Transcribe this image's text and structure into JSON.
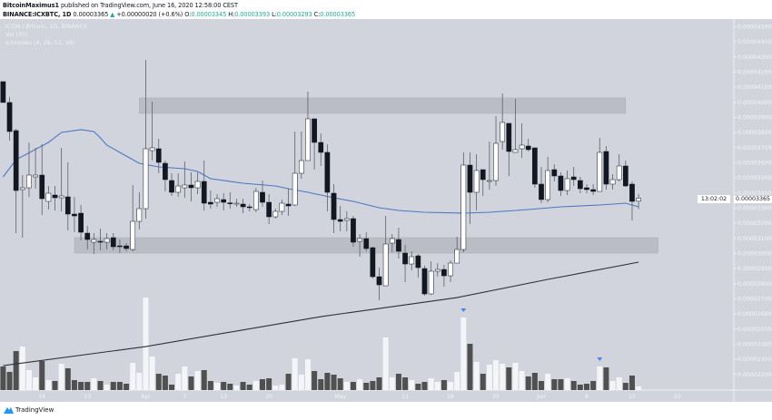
{
  "header": {
    "author": "BitcoinMaximus1",
    "published": "published on TradingView.com, June 16, 2020 12:58:00 CEST",
    "symbol": "BINANCE:ICXBTC, 1D",
    "last": "0.00003365",
    "change": "+0.00000020 (+0.6%)",
    "o_label": "O:",
    "o": "0.00003345",
    "h_label": "H:",
    "h": "0.00003393",
    "l_label": "L:",
    "l": "0.00003293",
    "c_label": "C:",
    "c": "0.00003365"
  },
  "legend": {
    "main": "ICON / Bitcoin, 1D, BINANCE",
    "vol": "Vol (20)",
    "ichimoku": "Ichimoku (9, 26, 52, 26)"
  },
  "price_tag": {
    "price": "0.00003365",
    "countdown": "13:02:02"
  },
  "footer": {
    "brand": "TradingView"
  },
  "colors": {
    "background": "#d1d4dc",
    "up_candle": "#ffffff",
    "down_candle": "#131722",
    "up_volume": "#f4f5f8",
    "down_volume": "#505050",
    "ma_blue": "#4a78c6",
    "ma_black": "#2f3036",
    "zone": "#b4b7c0",
    "marker": "#4a86e8",
    "accent_teal": "#26a69a"
  },
  "chart_data": {
    "type": "candlestick",
    "interval": "1D",
    "ylim": [
      2.1e-05,
      4.62e-05
    ],
    "y_ticks": [
      "0.00004500",
      "0.00004400",
      "0.00004300",
      "0.00004200",
      "0.00004100",
      "0.00004000",
      "0.00003900",
      "0.00003800",
      "0.00003700",
      "0.00003600",
      "0.00003500",
      "0.00003400",
      "0.00003300",
      "0.00003200",
      "0.00003100",
      "0.00003000",
      "0.00002900",
      "0.00002800",
      "0.00002700",
      "0.00002600",
      "0.00002500",
      "0.00002400",
      "0.00002300",
      "0.00002200"
    ],
    "x_ticks": [
      {
        "label": "16",
        "date": "2020-03-16"
      },
      {
        "label": "23",
        "date": "2020-03-23"
      },
      {
        "label": "Apr",
        "date": "2020-04-01"
      },
      {
        "label": "7",
        "date": "2020-04-07"
      },
      {
        "label": "13",
        "date": "2020-04-13"
      },
      {
        "label": "20",
        "date": "2020-04-20"
      },
      {
        "label": "May",
        "date": "2020-05-01"
      },
      {
        "label": "11",
        "date": "2020-05-11"
      },
      {
        "label": "18",
        "date": "2020-05-18"
      },
      {
        "label": "25",
        "date": "2020-05-25"
      },
      {
        "label": "Jun",
        "date": "2020-06-01"
      },
      {
        "label": "8",
        "date": "2020-06-08"
      },
      {
        "label": "15",
        "date": "2020-06-15"
      },
      {
        "label": "22",
        "date": "2020-06-22"
      }
    ],
    "candle_fields": [
      "date",
      "open",
      "high",
      "low",
      "close",
      "volume_relative"
    ],
    "candles": [
      [
        "2020-03-10",
        4.136e-05,
        4.136e-05,
        3.998e-05,
        3.998e-05,
        26
      ],
      [
        "2020-03-11",
        3.998e-05,
        4.034e-05,
        3.746e-05,
        3.806e-05,
        20
      ],
      [
        "2020-03-12",
        3.812e-05,
        3.824e-05,
        3.134e-05,
        3.416e-05,
        43
      ],
      [
        "2020-03-13",
        3.422e-05,
        3.518e-05,
        3.104e-05,
        3.434e-05,
        48
      ],
      [
        "2020-03-14",
        3.434e-05,
        3.734e-05,
        3.374e-05,
        3.518e-05,
        22
      ],
      [
        "2020-03-15",
        3.506e-05,
        3.698e-05,
        3.428e-05,
        3.518e-05,
        14
      ],
      [
        "2020-03-16",
        3.518e-05,
        3.722e-05,
        3.254e-05,
        3.362e-05,
        32
      ],
      [
        "2020-03-17",
        3.344e-05,
        3.446e-05,
        3.29e-05,
        3.398e-05,
        11
      ],
      [
        "2020-03-18",
        3.386e-05,
        3.446e-05,
        3.284e-05,
        3.368e-05,
        10
      ],
      [
        "2020-03-19",
        3.368e-05,
        3.698e-05,
        3.278e-05,
        3.38e-05,
        29
      ],
      [
        "2020-03-20",
        3.374e-05,
        3.602e-05,
        3.152e-05,
        3.26e-05,
        24
      ],
      [
        "2020-03-21",
        3.26e-05,
        3.374e-05,
        3.14e-05,
        3.248e-05,
        11
      ],
      [
        "2020-03-22",
        3.266e-05,
        3.32e-05,
        3.086e-05,
        3.14e-05,
        9
      ],
      [
        "2020-03-23",
        3.134e-05,
        3.182e-05,
        3.026e-05,
        3.092e-05,
        9
      ],
      [
        "2020-03-24",
        3.074e-05,
        3.134e-05,
        2.996e-05,
        3.092e-05,
        13
      ],
      [
        "2020-03-25",
        3.08e-05,
        3.164e-05,
        3.02e-05,
        3.074e-05,
        10
      ],
      [
        "2020-03-26",
        3.074e-05,
        3.134e-05,
        3.026e-05,
        3.098e-05,
        6
      ],
      [
        "2020-03-27",
        3.104e-05,
        3.134e-05,
        3.02e-05,
        3.044e-05,
        9
      ],
      [
        "2020-03-28",
        3.05e-05,
        3.092e-05,
        3.002e-05,
        3.044e-05,
        9
      ],
      [
        "2020-03-29",
        3.05e-05,
        3.068e-05,
        3.014e-05,
        3.032e-05,
        7
      ],
      [
        "2020-03-30",
        3.026e-05,
        3.452e-05,
        3.014e-05,
        3.212e-05,
        30
      ],
      [
        "2020-03-31",
        3.212e-05,
        3.404e-05,
        3.158e-05,
        3.296e-05,
        19
      ],
      [
        "2020-04-01",
        3.296e-05,
        4.28e-05,
        3.23e-05,
        3.692e-05,
        102
      ],
      [
        "2020-04-02",
        3.68e-05,
        4.004e-05,
        3.614e-05,
        3.698e-05,
        37
      ],
      [
        "2020-04-03",
        3.692e-05,
        3.758e-05,
        3.53e-05,
        3.602e-05,
        18
      ],
      [
        "2020-04-04",
        3.596e-05,
        3.614e-05,
        3.41e-05,
        3.488e-05,
        16
      ],
      [
        "2020-04-05",
        3.482e-05,
        3.53e-05,
        3.38e-05,
        3.404e-05,
        6
      ],
      [
        "2020-04-06",
        3.404e-05,
        3.53e-05,
        3.374e-05,
        3.446e-05,
        18
      ],
      [
        "2020-04-07",
        3.434e-05,
        3.608e-05,
        3.368e-05,
        3.452e-05,
        26
      ],
      [
        "2020-04-08",
        3.452e-05,
        3.536e-05,
        3.344e-05,
        3.434e-05,
        15
      ],
      [
        "2020-04-09",
        3.434e-05,
        3.536e-05,
        3.392e-05,
        3.476e-05,
        21
      ],
      [
        "2020-04-10",
        3.476e-05,
        3.614e-05,
        3.284e-05,
        3.332e-05,
        22
      ],
      [
        "2020-04-11",
        3.338e-05,
        3.416e-05,
        3.296e-05,
        3.326e-05,
        10
      ],
      [
        "2020-04-12",
        3.338e-05,
        3.392e-05,
        3.308e-05,
        3.362e-05,
        8
      ],
      [
        "2020-04-13",
        3.356e-05,
        3.398e-05,
        3.284e-05,
        3.338e-05,
        9
      ],
      [
        "2020-04-14",
        3.334e-05,
        3.404e-05,
        3.296e-05,
        3.332e-05,
        7
      ],
      [
        "2020-04-15",
        3.33e-05,
        3.362e-05,
        3.308e-05,
        3.332e-05,
        5
      ],
      [
        "2020-04-16",
        3.326e-05,
        3.362e-05,
        3.266e-05,
        3.308e-05,
        9
      ],
      [
        "2020-04-17",
        3.308e-05,
        3.326e-05,
        3.278e-05,
        3.305e-05,
        6
      ],
      [
        "2020-04-18",
        3.29e-05,
        3.434e-05,
        3.272e-05,
        3.41e-05,
        10
      ],
      [
        "2020-04-19",
        3.404e-05,
        3.482e-05,
        3.308e-05,
        3.338e-05,
        12
      ],
      [
        "2020-04-20",
        3.338e-05,
        3.392e-05,
        3.194e-05,
        3.242e-05,
        13
      ],
      [
        "2020-04-21",
        3.242e-05,
        3.296e-05,
        3.23e-05,
        3.278e-05,
        5
      ],
      [
        "2020-04-22",
        3.278e-05,
        3.356e-05,
        3.254e-05,
        3.332e-05,
        6
      ],
      [
        "2020-04-23",
        3.326e-05,
        3.428e-05,
        3.248e-05,
        3.314e-05,
        18
      ],
      [
        "2020-04-24",
        3.32e-05,
        3.806e-05,
        3.314e-05,
        3.53e-05,
        35
      ],
      [
        "2020-04-25",
        3.53e-05,
        3.806e-05,
        3.494e-05,
        3.614e-05,
        17
      ],
      [
        "2020-04-26",
        3.614e-05,
        4.07e-05,
        3.614e-05,
        3.89e-05,
        34
      ],
      [
        "2020-04-27",
        3.89e-05,
        3.89e-05,
        3.554e-05,
        3.734e-05,
        21
      ],
      [
        "2020-04-28",
        3.734e-05,
        3.794e-05,
        3.578e-05,
        3.668e-05,
        12
      ],
      [
        "2020-04-29",
        3.668e-05,
        3.722e-05,
        3.278e-05,
        3.404e-05,
        19
      ],
      [
        "2020-04-30",
        3.398e-05,
        3.458e-05,
        3.134e-05,
        3.224e-05,
        17
      ],
      [
        "2020-05-01",
        3.224e-05,
        3.314e-05,
        3.146e-05,
        3.212e-05,
        13
      ],
      [
        "2020-05-02",
        3.218e-05,
        3.278e-05,
        3.146e-05,
        3.23e-05,
        9
      ],
      [
        "2020-05-03",
        3.23e-05,
        3.248e-05,
        3.044e-05,
        3.074e-05,
        9
      ],
      [
        "2020-05-04",
        3.08e-05,
        3.128e-05,
        2.978e-05,
        3.098e-05,
        12
      ],
      [
        "2020-05-05",
        3.098e-05,
        3.14e-05,
        3.014e-05,
        3.032e-05,
        8
      ],
      [
        "2020-05-06",
        3.038e-05,
        3.044e-05,
        2.834e-05,
        2.846e-05,
        10
      ],
      [
        "2020-05-07",
        2.846e-05,
        2.906e-05,
        2.69e-05,
        2.792e-05,
        14
      ],
      [
        "2020-05-08",
        2.786e-05,
        3.248e-05,
        2.786e-05,
        3.062e-05,
        58
      ],
      [
        "2020-05-09",
        3.068e-05,
        3.128e-05,
        3.008e-05,
        3.098e-05,
        14
      ],
      [
        "2020-05-10",
        3.092e-05,
        3.17e-05,
        2.966e-05,
        3.014e-05,
        18
      ],
      [
        "2020-05-11",
        3.002e-05,
        3.056e-05,
        2.81e-05,
        2.93e-05,
        14
      ],
      [
        "2020-05-12",
        2.93e-05,
        3.014e-05,
        2.888e-05,
        2.978e-05,
        11
      ],
      [
        "2020-05-13",
        2.984e-05,
        2.996e-05,
        2.84e-05,
        2.906e-05,
        7
      ],
      [
        "2020-05-14",
        2.9e-05,
        2.918e-05,
        2.72e-05,
        2.732e-05,
        9
      ],
      [
        "2020-05-15",
        2.732e-05,
        2.948e-05,
        2.726e-05,
        2.882e-05,
        13
      ],
      [
        "2020-05-16",
        2.882e-05,
        2.936e-05,
        2.846e-05,
        2.894e-05,
        9
      ],
      [
        "2020-05-17",
        2.894e-05,
        2.924e-05,
        2.78e-05,
        2.852e-05,
        11
      ],
      [
        "2020-05-18",
        2.852e-05,
        2.954e-05,
        2.81e-05,
        2.936e-05,
        9
      ],
      [
        "2020-05-19",
        2.936e-05,
        3.11e-05,
        2.936e-05,
        3.026e-05,
        20
      ],
      [
        "2020-05-20",
        3.026e-05,
        3.668e-05,
        3.008e-05,
        3.584e-05,
        80
      ],
      [
        "2020-05-21",
        3.584e-05,
        3.668e-05,
        3.194e-05,
        3.404e-05,
        51
      ],
      [
        "2020-05-22",
        3.404e-05,
        3.656e-05,
        3.284e-05,
        3.548e-05,
        31
      ],
      [
        "2020-05-23",
        3.554e-05,
        3.554e-05,
        3.38e-05,
        3.488e-05,
        18
      ],
      [
        "2020-05-24",
        3.476e-05,
        3.74e-05,
        3.422e-05,
        3.482e-05,
        28
      ],
      [
        "2020-05-25",
        3.482e-05,
        3.908e-05,
        3.446e-05,
        3.728e-05,
        33
      ],
      [
        "2020-05-26",
        3.74e-05,
        4.058e-05,
        3.686e-05,
        3.866e-05,
        29
      ],
      [
        "2020-05-27",
        3.86e-05,
        3.86e-05,
        3.512e-05,
        3.674e-05,
        25
      ],
      [
        "2020-05-28",
        3.668e-05,
        4.022e-05,
        3.668e-05,
        3.686e-05,
        30
      ],
      [
        "2020-05-29",
        3.692e-05,
        3.86e-05,
        3.632e-05,
        3.716e-05,
        21
      ],
      [
        "2020-05-30",
        3.71e-05,
        3.758e-05,
        3.674e-05,
        3.686e-05,
        15
      ],
      [
        "2020-05-31",
        3.698e-05,
        3.698e-05,
        3.434e-05,
        3.458e-05,
        19
      ],
      [
        "2020-06-01",
        3.458e-05,
        3.572e-05,
        3.332e-05,
        3.356e-05,
        10
      ],
      [
        "2020-06-02",
        3.356e-05,
        3.638e-05,
        3.338e-05,
        3.548e-05,
        18
      ],
      [
        "2020-06-03",
        3.554e-05,
        3.59e-05,
        3.476e-05,
        3.512e-05,
        12
      ],
      [
        "2020-06-04",
        3.512e-05,
        3.536e-05,
        3.38e-05,
        3.416e-05,
        12
      ],
      [
        "2020-06-05",
        3.416e-05,
        3.548e-05,
        3.386e-05,
        3.494e-05,
        13
      ],
      [
        "2020-06-06",
        3.506e-05,
        3.572e-05,
        3.446e-05,
        3.488e-05,
        10
      ],
      [
        "2020-06-07",
        3.482e-05,
        3.506e-05,
        3.398e-05,
        3.428e-05,
        6
      ],
      [
        "2020-06-08",
        3.434e-05,
        3.458e-05,
        3.398e-05,
        3.422e-05,
        7
      ],
      [
        "2020-06-09",
        3.422e-05,
        3.458e-05,
        3.386e-05,
        3.41e-05,
        10
      ],
      [
        "2020-06-10",
        3.41e-05,
        3.764e-05,
        3.41e-05,
        3.668e-05,
        26
      ],
      [
        "2020-06-11",
        3.674e-05,
        3.71e-05,
        3.422e-05,
        3.458e-05,
        25
      ],
      [
        "2020-06-12",
        3.458e-05,
        3.524e-05,
        3.422e-05,
        3.488e-05,
        10
      ],
      [
        "2020-06-13",
        3.488e-05,
        3.656e-05,
        3.476e-05,
        3.578e-05,
        14
      ],
      [
        "2020-06-14",
        3.578e-05,
        3.614e-05,
        3.44e-05,
        3.446e-05,
        8
      ],
      [
        "2020-06-15",
        3.458e-05,
        3.476e-05,
        3.218e-05,
        3.344e-05,
        16
      ],
      [
        "2020-06-16",
        3.345e-05,
        3.393e-05,
        3.293e-05,
        3.365e-05,
        4
      ]
    ],
    "ma_blue": [
      [
        "2020-03-10",
        3.506e-05
      ],
      [
        "2020-03-12",
        3.62e-05
      ],
      [
        "2020-03-17",
        3.734e-05
      ],
      [
        "2020-03-19",
        3.8e-05
      ],
      [
        "2020-03-22",
        3.818e-05
      ],
      [
        "2020-03-24",
        3.806e-05
      ],
      [
        "2020-03-25",
        3.764e-05
      ],
      [
        "2020-03-26",
        3.716e-05
      ],
      [
        "2020-03-28",
        3.668e-05
      ],
      [
        "2020-03-31",
        3.596e-05
      ],
      [
        "2020-04-03",
        3.572e-05
      ],
      [
        "2020-04-07",
        3.56e-05
      ],
      [
        "2020-04-09",
        3.542e-05
      ],
      [
        "2020-04-11",
        3.494e-05
      ],
      [
        "2020-04-16",
        3.464e-05
      ],
      [
        "2020-04-21",
        3.446e-05
      ],
      [
        "2020-04-23",
        3.428e-05
      ],
      [
        "2020-04-26",
        3.404e-05
      ],
      [
        "2020-04-30",
        3.368e-05
      ],
      [
        "2020-05-03",
        3.344e-05
      ],
      [
        "2020-05-07",
        3.302e-05
      ],
      [
        "2020-05-10",
        3.284e-05
      ],
      [
        "2020-05-14",
        3.272e-05
      ],
      [
        "2020-05-20",
        3.266e-05
      ],
      [
        "2020-05-24",
        3.272e-05
      ],
      [
        "2020-05-30",
        3.29e-05
      ],
      [
        "2020-06-04",
        3.308e-05
      ],
      [
        "2020-06-10",
        3.32e-05
      ],
      [
        "2020-06-14",
        3.332e-05
      ],
      [
        "2020-06-16",
        3.308e-05
      ]
    ],
    "ma_black": [
      [
        "2020-03-10",
        2.258e-05
      ],
      [
        "2020-04-01",
        2.384e-05
      ],
      [
        "2020-04-28",
        2.582e-05
      ],
      [
        "2020-05-07",
        2.636e-05
      ],
      [
        "2020-05-19",
        2.708e-05
      ],
      [
        "2020-06-02",
        2.828e-05
      ],
      [
        "2020-06-16",
        2.942e-05
      ]
    ],
    "zones": [
      {
        "from": "2020-03-31",
        "to": "2020-06-14",
        "top": 4.028e-05,
        "bottom": 3.926e-05
      },
      {
        "from": "2020-03-21",
        "to": "2020-06-19",
        "top": 3.104e-05,
        "bottom": 3.002e-05
      }
    ],
    "volume_markers": [
      "2020-05-20",
      "2020-06-10"
    ]
  }
}
